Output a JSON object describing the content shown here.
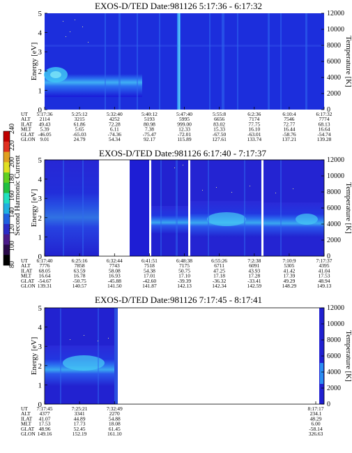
{
  "colorbar": {
    "label": "Second Harmonic Current",
    "ticks": [
      "80",
      "100",
      "120",
      "140",
      "160",
      "180",
      "200",
      "220",
      "240"
    ],
    "colors": [
      "#000000",
      "#2a0a4a",
      "#4b1a8a",
      "#2b2bc8",
      "#2060e0",
      "#20b0e0",
      "#20e0c0",
      "#20c040",
      "#60d020",
      "#e0e020",
      "#e0a020",
      "#e03020",
      "#c00000"
    ]
  },
  "table_row_labels": [
    "UT",
    "ALT",
    "ILAT",
    "MLT",
    "GLAT",
    "GLON"
  ],
  "chart_data": [
    {
      "type": "heatmap",
      "title": "EXOS-D/TED   Date:981126  5:17:36 - 6:17:32",
      "ylabel": "Energy [eV]",
      "y2label": "Temperature [K]",
      "ylim": [
        0,
        5
      ],
      "y2lim": [
        0,
        12000
      ],
      "yticks": [
        "0",
        "1",
        "2",
        "3",
        "4",
        "5"
      ],
      "y2ticks": [
        "0",
        "2000",
        "4000",
        "6000",
        "8000",
        "10000",
        "12000"
      ],
      "columns": [
        [
          "5:17:36",
          "2114",
          "49.43",
          "5.39",
          "-46.05",
          "9.01"
        ],
        [
          "5:25:12",
          "3215",
          "61.86",
          "5.65",
          "-65.03",
          "24.79"
        ],
        [
          "5:32:40",
          "4252",
          "72.28",
          "6.11",
          "-74.36",
          "54.34"
        ],
        [
          "5:40:12",
          "5193",
          "80.98",
          "7.38",
          "-75.47",
          "92.17"
        ],
        [
          "5:47:40",
          "5995",
          "999.00",
          "12.33",
          "-72.01",
          "115.89"
        ],
        [
          "5:55:8",
          "6656",
          "83.02",
          "15.33",
          "-67.50",
          "127.61"
        ],
        [
          "6:2:36",
          "7174",
          "77.75",
          "16.10",
          "-63.01",
          "133.74"
        ],
        [
          "6:10:4",
          "7546",
          "72.77",
          "16.44",
          "-58.76",
          "137.21"
        ],
        [
          "6:17:32",
          "7774",
          "68.13",
          "16.64",
          "-54.74",
          "139.28"
        ]
      ]
    },
    {
      "type": "heatmap",
      "title": "EXOS-D/TED   Date:981126  6:17:40 - 7:17:37",
      "ylabel": "Energy [eV]",
      "y2label": "Temperature [K]",
      "ylim": [
        0,
        5
      ],
      "y2lim": [
        0,
        12000
      ],
      "yticks": [
        "0",
        "1",
        "2",
        "3",
        "4",
        "5"
      ],
      "y2ticks": [
        "0",
        "2000",
        "4000",
        "6000",
        "8000",
        "10000",
        "12000"
      ],
      "columns": [
        [
          "6:17:40",
          "7776",
          "68.05",
          "16.64",
          "-54.67",
          "139.31"
        ],
        [
          "6:25:16",
          "7858",
          "63.59",
          "16.78",
          "-50.75",
          "140.57"
        ],
        [
          "6:32:44",
          "7743",
          "58.08",
          "16.93",
          "-45.88",
          "141.50"
        ],
        [
          "6:41:51",
          "7518",
          "54.38",
          "17.01",
          "-42.60",
          "141.87"
        ],
        [
          "6:48:38",
          "7175",
          "50.75",
          "17.10",
          "-39.39",
          "142.13"
        ],
        [
          "6:55:26",
          "6711",
          "47.25",
          "17.18",
          "-36.32",
          "142.34"
        ],
        [
          "7:2:38",
          "6091",
          "43.93",
          "17.28",
          "-33.41",
          "142.59"
        ],
        [
          "7:10:9",
          "5305",
          "41.42",
          "17.39",
          "49.29",
          "148.29"
        ],
        [
          "7:17:37",
          "4395",
          "41.04",
          "17.53",
          "48.94",
          "149.13"
        ]
      ]
    },
    {
      "type": "heatmap",
      "title": "EXOS-D/TED   Date:981126  7:17:45 - 8:17:41",
      "ylabel": "Energy [eV]",
      "y2label": "Temperature [K]",
      "ylim": [
        0,
        5
      ],
      "y2lim": [
        0,
        12000
      ],
      "yticks": [
        "0",
        "1",
        "2",
        "3",
        "4",
        "5"
      ],
      "y2ticks": [
        "0",
        "2000",
        "4000",
        "6000",
        "8000",
        "10000",
        "12000"
      ],
      "columns": [
        [
          "7:17:45",
          "4377",
          "41.07",
          "17.53",
          "48.96",
          "149.16"
        ],
        [
          "7:25:21",
          "3341",
          "44.89",
          "17.73",
          "52.45",
          "152.19"
        ],
        [
          "7:32:49",
          "2270",
          "54.88",
          "18.08",
          "61.45",
          "161.10"
        ],
        [
          "8:17:17",
          "234.1",
          "48.29",
          "6.00",
          "-58.14",
          "326.63"
        ]
      ]
    }
  ]
}
